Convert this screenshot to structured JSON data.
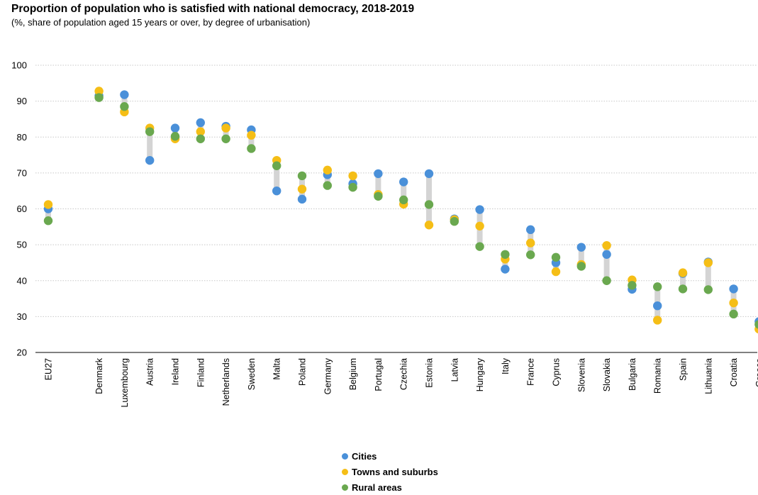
{
  "chart_data": {
    "type": "scatter",
    "title": "Proportion of population who is satisfied with national democracy, 2018-2019",
    "subtitle": "(%, share of population aged 15 years or over, by degree of urbanisation)",
    "ylim": [
      20,
      100
    ],
    "yticks": [
      20,
      30,
      40,
      50,
      60,
      70,
      80,
      90,
      100
    ],
    "grid": true,
    "legend_position": "bottom",
    "categories": [
      "EU27",
      "",
      "Denmark",
      "Luxembourg",
      "Austria",
      "Ireland",
      "Finland",
      "Netherlands",
      "Sweden",
      "Malta",
      "Poland",
      "Germany",
      "Belgium",
      "Portugal",
      "Czechia",
      "Estonia",
      "Latvia",
      "Hungary",
      "Italy",
      "France",
      "Cyprus",
      "Slovenia",
      "Slovakia",
      "Bulgaria",
      "Romania",
      "Spain",
      "Lithuania",
      "Croatia",
      "Greece"
    ],
    "series": [
      {
        "name": "Cities",
        "color": "#4a90d9",
        "values": [
          60,
          null,
          91.5,
          91.8,
          73.5,
          82.5,
          84,
          83,
          82,
          65,
          62.7,
          69.5,
          67,
          69.8,
          67.5,
          69.8,
          57.2,
          59.8,
          43.2,
          54.2,
          45,
          49.3,
          47.3,
          37.6,
          33,
          42,
          45.2,
          37.7,
          28.6
        ]
      },
      {
        "name": "Towns and suburbs",
        "color": "#f5be16",
        "values": [
          61.2,
          null,
          92.8,
          87,
          82.5,
          79.5,
          81.5,
          82.5,
          80.5,
          73.5,
          65.5,
          70.8,
          69.2,
          64,
          61.3,
          55.5,
          57,
          55.2,
          46,
          50.5,
          42.5,
          44.5,
          49.8,
          40.2,
          29,
          42.2,
          45,
          33.8,
          26.5
        ]
      },
      {
        "name": "Rural areas",
        "color": "#6aa84f",
        "values": [
          56.7,
          null,
          91,
          88.5,
          81.5,
          80.2,
          79.5,
          79.5,
          76.8,
          72,
          69.2,
          66.5,
          66,
          63.5,
          62.5,
          61.2,
          56.5,
          49.5,
          47.3,
          47.2,
          46.5,
          44,
          40,
          38.7,
          38.3,
          37.7,
          37.5,
          30.7,
          27.8
        ]
      }
    ]
  }
}
